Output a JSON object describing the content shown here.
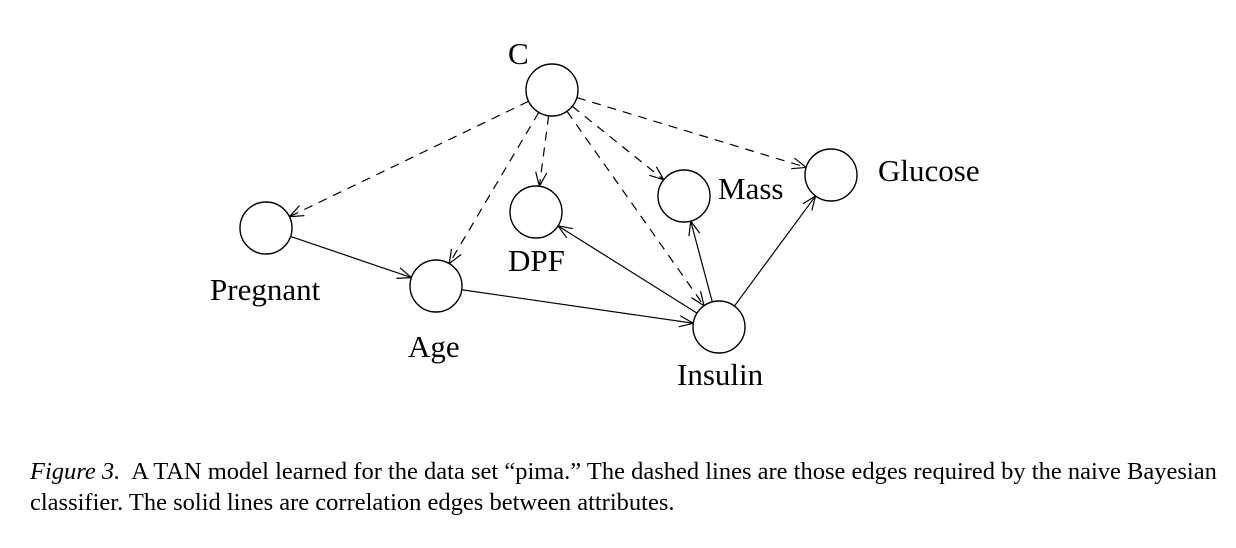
{
  "diagram": {
    "nodes": [
      {
        "id": "C",
        "label": "C"
      },
      {
        "id": "Pregnant",
        "label": "Pregnant"
      },
      {
        "id": "Age",
        "label": "Age"
      },
      {
        "id": "DPF",
        "label": "DPF"
      },
      {
        "id": "Mass",
        "label": "Mass"
      },
      {
        "id": "Glucose",
        "label": "Glucose"
      },
      {
        "id": "Insulin",
        "label": "Insulin"
      }
    ],
    "edges": [
      {
        "from": "C",
        "to": "Pregnant",
        "style": "dashed"
      },
      {
        "from": "C",
        "to": "Age",
        "style": "dashed"
      },
      {
        "from": "C",
        "to": "DPF",
        "style": "dashed"
      },
      {
        "from": "C",
        "to": "Mass",
        "style": "dashed"
      },
      {
        "from": "C",
        "to": "Glucose",
        "style": "dashed"
      },
      {
        "from": "C",
        "to": "Insulin",
        "style": "dashed"
      },
      {
        "from": "Pregnant",
        "to": "Age",
        "style": "solid"
      },
      {
        "from": "Age",
        "to": "Insulin",
        "style": "solid"
      },
      {
        "from": "Insulin",
        "to": "DPF",
        "style": "solid"
      },
      {
        "from": "Insulin",
        "to": "Mass",
        "style": "solid"
      },
      {
        "from": "Insulin",
        "to": "Glucose",
        "style": "solid"
      }
    ]
  },
  "caption": {
    "figure_label": "Figure 3.",
    "text": "A TAN model learned for the data set “pima.” The dashed lines are those edges required by the naive Bayesian classifier. The solid lines are correlation edges between attributes."
  }
}
